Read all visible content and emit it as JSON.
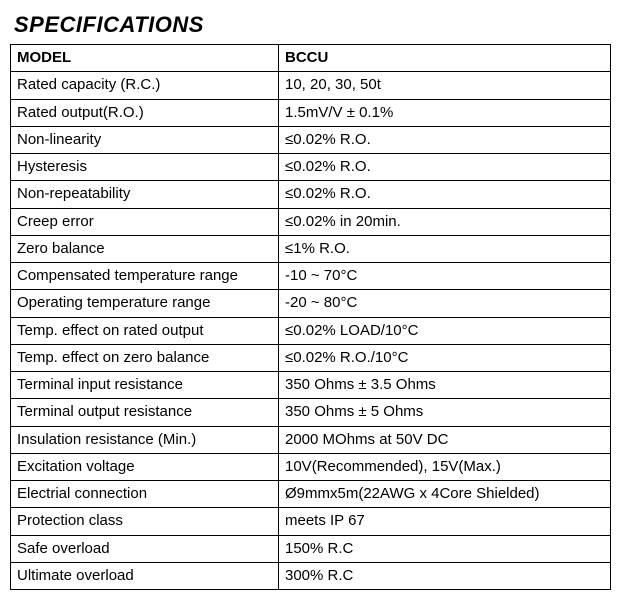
{
  "title": "SPECIFICATIONS",
  "header": {
    "col1": "MODEL",
    "col2": "BCCU"
  },
  "rows": [
    {
      "label": "Rated capacity (R.C.)",
      "value": "10, 20, 30, 50t"
    },
    {
      "label": "Rated output(R.O.)",
      "value": "1.5mV/V ± 0.1%"
    },
    {
      "label": "Non-linearity",
      "value": "≤0.02% R.O."
    },
    {
      "label": "Hysteresis",
      "value": "≤0.02% R.O."
    },
    {
      "label": "Non-repeatability",
      "value": "≤0.02% R.O."
    },
    {
      "label": "Creep error",
      "value": "≤0.02% in 20min."
    },
    {
      "label": "Zero balance",
      "value": "≤1% R.O."
    },
    {
      "label": "Compensated temperature range",
      "value": "-10 ~ 70°C"
    },
    {
      "label": "Operating temperature range",
      "value": "-20 ~ 80°C"
    },
    {
      "label": "Temp. effect on rated output",
      "value": "≤0.02% LOAD/10°C"
    },
    {
      "label": "Temp. effect on zero balance",
      "value": "≤0.02% R.O./10°C"
    },
    {
      "label": "Terminal input resistance",
      "value": "350 Ohms ± 3.5 Ohms"
    },
    {
      "label": "Terminal output resistance",
      "value": "350 Ohms ± 5 Ohms"
    },
    {
      "label": "Insulation resistance (Min.)",
      "value": "2000 MOhms at 50V DC"
    },
    {
      "label": "Excitation voltage",
      "value": "10V(Recommended), 15V(Max.)"
    },
    {
      "label": "Electrial connection",
      "value": "Ø9mmx5m(22AWG x 4Core Shielded)"
    },
    {
      "label": "Protection class",
      "value": "meets IP 67"
    },
    {
      "label": "Safe overload",
      "value": "150% R.C"
    },
    {
      "label": "Ultimate overload",
      "value": "300% R.C"
    }
  ]
}
